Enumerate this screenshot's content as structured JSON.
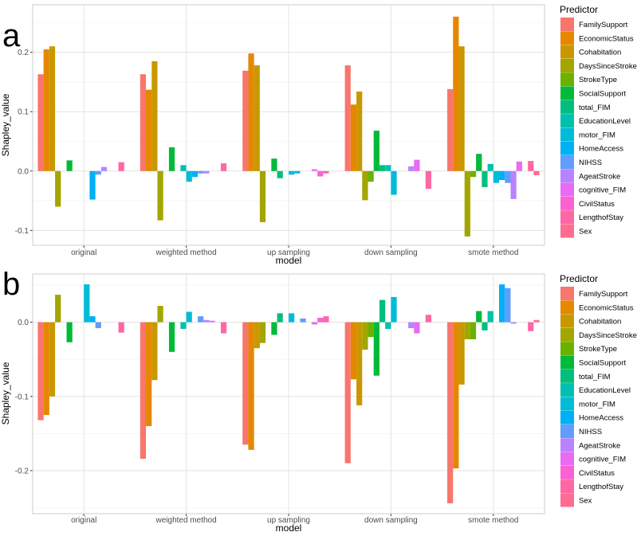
{
  "predictors": [
    "FamilySupport",
    "EconomicStatus",
    "Cohabitation",
    "DaysSinceStroke",
    "StrokeType",
    "SocialSupport",
    "total_FIM",
    "EducationLevel",
    "motor_FIM",
    "HomeAccess",
    "NIHSS",
    "AgeatStroke",
    "cognitive_FIM",
    "CivilStatus",
    "LengthofStay",
    "Sex"
  ],
  "colors": [
    "#F8766D",
    "#E58700",
    "#C99800",
    "#A3A500",
    "#6BB100",
    "#00BA38",
    "#00BF7D",
    "#00C0AF",
    "#00BCD8",
    "#00B0F6",
    "#619CFF",
    "#B983FF",
    "#E76BF3",
    "#FD61D1",
    "#FF67A4",
    "#FF6C91"
  ],
  "chart_data": [
    {
      "type": "bar",
      "panel_label": "a",
      "xlabel": "model",
      "ylabel": "Shapley_value",
      "legend_title": "Predictor",
      "categories": [
        "original",
        "weighted  method",
        "up  sampling",
        "down  sampling",
        "smote  method"
      ],
      "ylim": [
        -0.125,
        0.28
      ],
      "yticks": [
        -0.1,
        0.0,
        0.1,
        0.2
      ],
      "ytick_labels": [
        "-0.1",
        "0.0",
        "0.1",
        "0.2"
      ],
      "values": [
        [
          0.163,
          0.205,
          0.21,
          -0.06,
          0.0,
          0.018,
          0.0,
          0.0,
          0.0,
          -0.048,
          -0.006,
          0.007,
          0.0,
          0.0,
          0.015,
          0.0
        ],
        [
          0.163,
          0.137,
          0.185,
          -0.083,
          0.0,
          0.04,
          0.0,
          0.01,
          -0.018,
          -0.01,
          -0.004,
          -0.004,
          0.0,
          0.0,
          0.013,
          0.0
        ],
        [
          0.169,
          0.198,
          0.178,
          -0.086,
          0.0,
          0.021,
          -0.012,
          0.0,
          -0.006,
          -0.004,
          0.0,
          0.0,
          0.003,
          -0.009,
          -0.004,
          0.0
        ],
        [
          0.178,
          0.112,
          0.134,
          -0.049,
          -0.018,
          0.068,
          0.01,
          0.01,
          -0.04,
          0.0,
          0.0,
          0.008,
          0.019,
          0.0,
          -0.03,
          0.0
        ],
        [
          0.138,
          0.26,
          0.21,
          -0.11,
          -0.01,
          0.029,
          -0.027,
          0.012,
          -0.02,
          -0.015,
          -0.02,
          -0.047,
          0.016,
          0.0,
          0.017,
          -0.007
        ]
      ]
    },
    {
      "type": "bar",
      "panel_label": "b",
      "xlabel": "model",
      "ylabel": "Shapley_value",
      "legend_title": "Predictor",
      "categories": [
        "original",
        "weighted  method",
        "up  sampling",
        "down  sampling",
        "smote  method"
      ],
      "ylim": [
        -0.258,
        0.065
      ],
      "yticks": [
        -0.2,
        -0.1,
        0.0
      ],
      "ytick_labels": [
        "-0.2",
        "-0.1",
        "0.0"
      ],
      "values": [
        [
          -0.132,
          -0.125,
          -0.1,
          0.037,
          0.0,
          -0.027,
          0.0,
          0.0,
          0.051,
          0.008,
          -0.008,
          0.0,
          0.0,
          0.0,
          -0.014,
          0.0
        ],
        [
          -0.184,
          -0.14,
          -0.078,
          0.022,
          0.0,
          -0.04,
          0.0,
          -0.009,
          0.014,
          0.0,
          0.008,
          0.003,
          0.002,
          0.0,
          -0.015,
          0.0
        ],
        [
          -0.165,
          -0.172,
          -0.035,
          -0.028,
          0.0,
          -0.017,
          0.012,
          0.0,
          0.012,
          0.0,
          0.005,
          0.0,
          -0.003,
          0.006,
          0.008,
          0.0
        ],
        [
          -0.19,
          -0.077,
          -0.112,
          -0.037,
          -0.02,
          -0.072,
          0.03,
          -0.009,
          0.034,
          0.0,
          0.0,
          -0.008,
          -0.015,
          0.0,
          0.01,
          0.0
        ],
        [
          -0.244,
          -0.197,
          -0.084,
          -0.023,
          -0.023,
          0.015,
          -0.011,
          0.015,
          0.0,
          0.051,
          0.046,
          -0.002,
          0.0,
          0.0,
          -0.012,
          0.003
        ]
      ]
    }
  ]
}
